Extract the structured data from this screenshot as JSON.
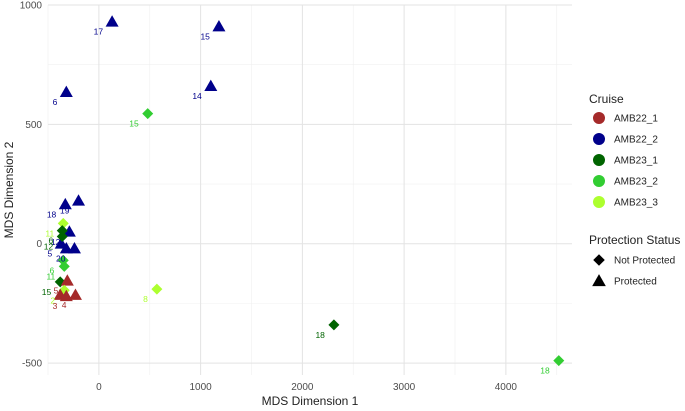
{
  "chart_data": {
    "type": "scatter",
    "xlabel": "MDS Dimension 1",
    "ylabel": "MDS Dimension 2",
    "xlim": [
      -500,
      4650
    ],
    "ylim": [
      -550,
      1000
    ],
    "x_ticks": [
      0,
      1000,
      2000,
      3000,
      4000
    ],
    "y_ticks": [
      -500,
      0,
      500,
      1000
    ],
    "grid": true,
    "legend_placement": "right",
    "color_legend": {
      "title": "Cruise",
      "entries": [
        {
          "name": "AMB22_1",
          "color": "#a52a2a"
        },
        {
          "name": "AMB22_2",
          "color": "#00008b"
        },
        {
          "name": "AMB23_1",
          "color": "#006400"
        },
        {
          "name": "AMB23_2",
          "color": "#32cd32"
        },
        {
          "name": "AMB23_3",
          "color": "#adff2f"
        }
      ]
    },
    "shape_legend": {
      "title": "Protection Status",
      "entries": [
        {
          "name": "Not Protected",
          "shape": "diamond"
        },
        {
          "name": "Protected",
          "shape": "triangle"
        }
      ]
    },
    "points": [
      {
        "x": 130,
        "y": 930,
        "cruise": "AMB22_2",
        "shape": "triangle",
        "label": "17"
      },
      {
        "x": 1180,
        "y": 910,
        "cruise": "AMB22_2",
        "shape": "triangle",
        "label": "15"
      },
      {
        "x": 1100,
        "y": 660,
        "cruise": "AMB22_2",
        "shape": "triangle",
        "label": "14"
      },
      {
        "x": -320,
        "y": 635,
        "cruise": "AMB22_2",
        "shape": "triangle",
        "label": "6"
      },
      {
        "x": -330,
        "y": 165,
        "cruise": "AMB22_2",
        "shape": "triangle",
        "label": "18"
      },
      {
        "x": -200,
        "y": 180,
        "cruise": "AMB22_2",
        "shape": "triangle",
        "label": "19"
      },
      {
        "x": -290,
        "y": 50,
        "cruise": "AMB22_2",
        "shape": "triangle",
        "label": "12"
      },
      {
        "x": -370,
        "y": 0,
        "cruise": "AMB22_2",
        "shape": "triangle",
        "label": "5"
      },
      {
        "x": -240,
        "y": -20,
        "cruise": "AMB22_2",
        "shape": "triangle",
        "label": "20"
      },
      {
        "x": -320,
        "y": -20,
        "cruise": "AMB22_2",
        "shape": "triangle",
        "label": ""
      },
      {
        "x": 480,
        "y": 545,
        "cruise": "AMB23_2",
        "shape": "diamond",
        "label": "15"
      },
      {
        "x": -350,
        "y": 85,
        "cruise": "AMB23_3",
        "shape": "diamond",
        "label": "11"
      },
      {
        "x": -360,
        "y": 55,
        "cruise": "AMB23_1",
        "shape": "diamond",
        "label": "6"
      },
      {
        "x": -360,
        "y": 30,
        "cruise": "AMB23_1",
        "shape": "diamond",
        "label": "12"
      },
      {
        "x": -350,
        "y": -70,
        "cruise": "AMB23_2",
        "shape": "diamond",
        "label": "6"
      },
      {
        "x": -340,
        "y": -95,
        "cruise": "AMB23_2",
        "shape": "diamond",
        "label": "11"
      },
      {
        "x": -380,
        "y": -160,
        "cruise": "AMB23_1",
        "shape": "diamond",
        "label": "15"
      },
      {
        "x": -310,
        "y": -155,
        "cruise": "AMB22_1",
        "shape": "triangle",
        "label": "5"
      },
      {
        "x": -340,
        "y": -195,
        "cruise": "AMB23_3",
        "shape": "diamond",
        "label": "2"
      },
      {
        "x": -380,
        "y": -215,
        "cruise": "AMB22_1",
        "shape": "triangle",
        "label": ""
      },
      {
        "x": -320,
        "y": -220,
        "cruise": "AMB22_1",
        "shape": "triangle",
        "label": "3"
      },
      {
        "x": -230,
        "y": -215,
        "cruise": "AMB22_1",
        "shape": "triangle",
        "label": "4"
      },
      {
        "x": 570,
        "y": -190,
        "cruise": "AMB23_3",
        "shape": "diamond",
        "label": "8"
      },
      {
        "x": 2310,
        "y": -340,
        "cruise": "AMB23_1",
        "shape": "diamond",
        "label": "18"
      },
      {
        "x": 4520,
        "y": -490,
        "cruise": "AMB23_2",
        "shape": "diamond",
        "label": "18"
      }
    ]
  }
}
